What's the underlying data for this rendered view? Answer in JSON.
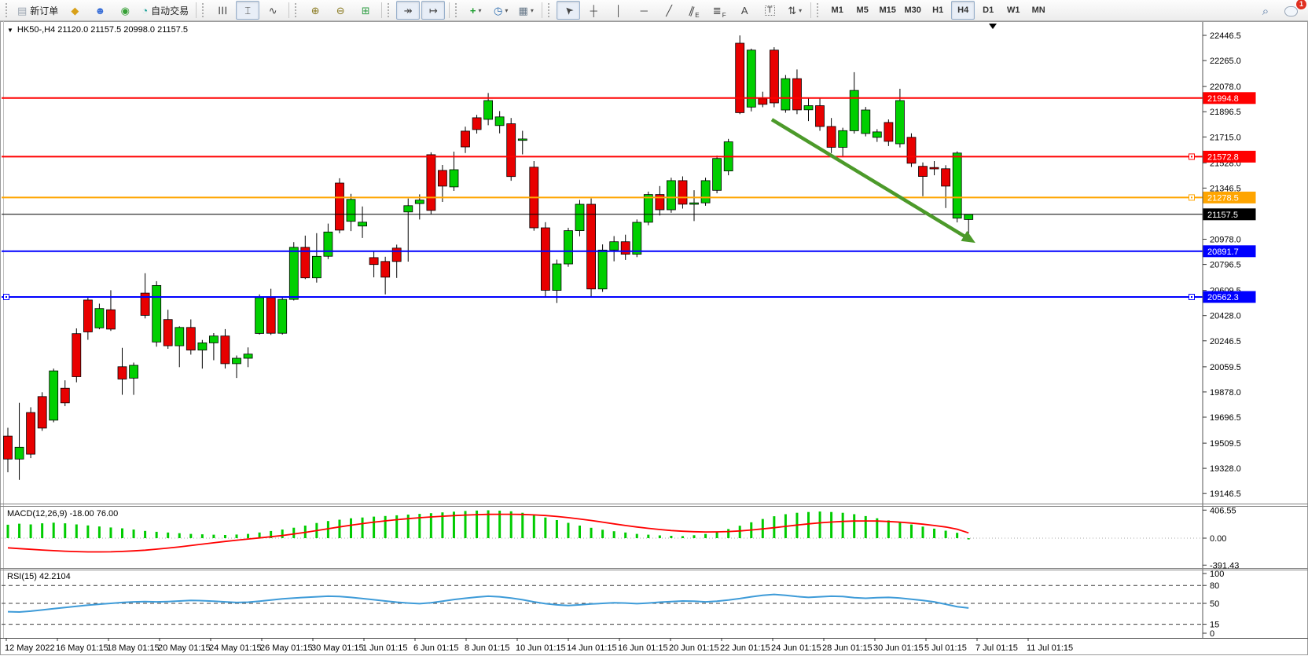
{
  "toolbar": {
    "groups": [
      [
        {
          "name": "new-order-button",
          "icon": "new-order-icon",
          "glyph": "▤",
          "color": "#9aa4b0",
          "label": "新订单"
        },
        {
          "name": "metaeditor-button",
          "icon": "metaeditor-icon",
          "glyph": "◆",
          "color": "#d8a018"
        },
        {
          "name": "community-button",
          "icon": "community-icon",
          "glyph": "☻",
          "color": "#3a6fd8"
        },
        {
          "name": "signals-button",
          "icon": "signals-icon",
          "glyph": "◉",
          "color": "#35a035"
        },
        {
          "name": "autotrading-button",
          "icon": "autotrading-icon",
          "glyph": "◔",
          "color": "#18a098",
          "label": "自动交易"
        }
      ],
      [
        {
          "name": "bar-chart-button",
          "icon": "bar-chart-icon",
          "glyph": "☰",
          "cls": "rot90"
        },
        {
          "name": "candlestick-chart-button",
          "icon": "candlestick-icon",
          "glyph": "⌶",
          "active": true
        },
        {
          "name": "line-chart-button",
          "icon": "line-chart-icon",
          "glyph": "∿"
        }
      ],
      [
        {
          "name": "zoom-in-button",
          "icon": "zoom-in-icon",
          "glyph": "⊕",
          "color": "#8a7a20"
        },
        {
          "name": "zoom-out-button",
          "icon": "zoom-out-icon",
          "glyph": "⊖",
          "color": "#8a7a20"
        },
        {
          "name": "tile-windows-button",
          "icon": "tile-windows-icon",
          "glyph": "⊞",
          "color": "#2f9e44"
        }
      ],
      [
        {
          "name": "auto-scroll-button",
          "icon": "auto-scroll-icon",
          "glyph": "↠",
          "active": true
        },
        {
          "name": "chart-shift-button",
          "icon": "chart-shift-icon",
          "glyph": "↦",
          "active": true
        }
      ],
      [
        {
          "name": "indicators-button",
          "icon": "add-indicator-icon",
          "glyph": "+",
          "color": "#1e9e30",
          "dropdown": true
        },
        {
          "name": "periods-button",
          "icon": "clock-icon",
          "glyph": "◷",
          "color": "#2b6cb0",
          "dropdown": true
        },
        {
          "name": "templates-button",
          "icon": "template-icon",
          "glyph": "▦",
          "color": "#667788",
          "dropdown": true
        }
      ],
      [
        {
          "name": "cursor-button",
          "icon": "cursor-icon",
          "glyph": "➤",
          "cls": "rotm135",
          "active": true
        },
        {
          "name": "crosshair-button",
          "icon": "crosshair-icon",
          "glyph": "┼"
        },
        {
          "name": "vertical-line-button",
          "icon": "vertical-line-icon",
          "glyph": "│"
        },
        {
          "name": "horizontal-line-button",
          "icon": "horizontal-line-icon",
          "glyph": "─"
        },
        {
          "name": "trendline-button",
          "icon": "trendline-icon",
          "glyph": "╱"
        },
        {
          "name": "channel-button",
          "icon": "channel-icon",
          "glyph": "∥",
          "cls": "rot25",
          "sub": "E"
        },
        {
          "name": "fibonacci-button",
          "icon": "fibonacci-icon",
          "glyph": "≣",
          "sub": "F"
        },
        {
          "name": "text-button",
          "icon": "text-icon",
          "glyph": "A"
        },
        {
          "name": "text-label-button",
          "icon": "text-label-icon",
          "glyph": "T",
          "cls": "boxed"
        },
        {
          "name": "arrows-button",
          "icon": "arrows-icon",
          "glyph": "⇅",
          "dropdown": true
        }
      ]
    ],
    "timeframes": {
      "items": [
        "M1",
        "M5",
        "M15",
        "M30",
        "H1",
        "H4",
        "D1",
        "W1",
        "MN"
      ],
      "active": "H4"
    },
    "right": {
      "search_glyph": "⌕",
      "notification_count": "1"
    }
  },
  "chart_data": {
    "type": "candlestick",
    "symbol": "HK50-",
    "period": "H4",
    "title_text": "HK50-,H4   21120.0 21157.5 20998.0 21157.5",
    "current_bar": {
      "open": 21120.0,
      "high": 21157.5,
      "low": 20998.0,
      "close": 21157.5
    },
    "price_axis_ticks": [
      "22446.5",
      "22265.0",
      "22078.0",
      "21896.5",
      "21715.0",
      "21528.0",
      "21346.5",
      "20978.0",
      "20796.5",
      "20609.5",
      "20428.0",
      "20246.5",
      "20059.5",
      "19878.0",
      "19696.5",
      "19509.5",
      "19328.0",
      "19146.5"
    ],
    "levels": [
      {
        "text": "21994.8",
        "price": 21994.8,
        "color": "#ff0000",
        "width": 2,
        "handles": []
      },
      {
        "text": "21572.8",
        "price": 21572.8,
        "color": "#ff0000",
        "width": 2,
        "handles": [
          "right"
        ]
      },
      {
        "text": "21278.5",
        "price": 21278.5,
        "color": "#ffa500",
        "width": 2,
        "handles": [
          "right"
        ]
      },
      {
        "text": "21157.5",
        "price": 21157.5,
        "color": "#000000",
        "width": 1,
        "handles": [],
        "is_price_line": true
      },
      {
        "text": "20891.7",
        "price": 20891.7,
        "color": "#0000ff",
        "width": 2,
        "handles": []
      },
      {
        "text": "20562.3",
        "price": 20562.3,
        "color": "#0000ff",
        "width": 2,
        "handles": [
          "left",
          "right"
        ]
      }
    ],
    "arrow": {
      "from_bar": 66.8,
      "from_price": 21840,
      "to_bar": 84.6,
      "to_price": 20952,
      "color": "#4c9a2a"
    },
    "colors": {
      "bull": "#00cf00",
      "bear": "#e80000",
      "wick": "#000000",
      "macd_hist": "#00cc00",
      "macd_signal": "#ff0000",
      "rsi_line": "#3e9bd8"
    },
    "candles": [
      [
        19560,
        19620,
        19300,
        19395
      ],
      [
        19395,
        19800,
        19245,
        19480
      ],
      [
        19730,
        19768,
        19402,
        19430
      ],
      [
        19845,
        19876,
        19598,
        19618
      ],
      [
        19675,
        20046,
        19660,
        20030
      ],
      [
        19905,
        19962,
        19776,
        19800
      ],
      [
        20298,
        20336,
        19948,
        19988
      ],
      [
        20540,
        20566,
        20254,
        20310
      ],
      [
        20340,
        20514,
        20330,
        20479
      ],
      [
        20470,
        20611,
        20318,
        20331
      ],
      [
        20060,
        20196,
        19858,
        19971
      ],
      [
        19978,
        20090,
        19857,
        20070
      ],
      [
        20590,
        20733,
        20408,
        20430
      ],
      [
        20238,
        20676,
        20204,
        20645
      ],
      [
        20400,
        20470,
        20189,
        20211
      ],
      [
        20211,
        20351,
        20057,
        20343
      ],
      [
        20343,
        20401,
        20147,
        20180
      ],
      [
        20180,
        20253,
        20046,
        20232
      ],
      [
        20232,
        20302,
        20107,
        20281
      ],
      [
        20281,
        20331,
        20047,
        20082
      ],
      [
        20082,
        20141,
        19979,
        20121
      ],
      [
        20121,
        20199,
        20057,
        20151
      ],
      [
        20300,
        20581,
        20291,
        20558
      ],
      [
        20558,
        20621,
        20289,
        20301
      ],
      [
        20301,
        20561,
        20291,
        20545
      ],
      [
        20545,
        20957,
        20537,
        20920
      ],
      [
        20920,
        21004,
        20691,
        20700
      ],
      [
        20700,
        21022,
        20666,
        20855
      ],
      [
        20855,
        21091,
        20835,
        21030
      ],
      [
        21383,
        21417,
        21021,
        21044
      ],
      [
        21107,
        21305,
        21037,
        21265
      ],
      [
        21073,
        21214,
        20987,
        21101
      ],
      [
        20846,
        20893,
        20704,
        20796
      ],
      [
        20818,
        20852,
        20581,
        20705
      ],
      [
        20914,
        20939,
        20699,
        20818
      ],
      [
        21175,
        21271,
        20817,
        21220
      ],
      [
        21235,
        21301,
        21120,
        21260
      ],
      [
        21587,
        21604,
        21158,
        21186
      ],
      [
        21474,
        21513,
        21247,
        21361
      ],
      [
        21355,
        21609,
        21326,
        21479
      ],
      [
        21757,
        21789,
        21599,
        21643
      ],
      [
        21853,
        21874,
        21739,
        21768
      ],
      [
        21842,
        22031,
        21799,
        21977
      ],
      [
        21797,
        21901,
        21741,
        21859
      ],
      [
        21810,
        21851,
        21399,
        21430
      ],
      [
        21690,
        21759,
        21589,
        21700
      ],
      [
        21497,
        21541,
        21039,
        21060
      ],
      [
        21060,
        21101,
        20558,
        20610
      ],
      [
        20610,
        20831,
        20519,
        20800
      ],
      [
        20800,
        21061,
        20779,
        21040
      ],
      [
        21040,
        21261,
        20999,
        21230
      ],
      [
        21230,
        21272,
        20559,
        20620
      ],
      [
        20620,
        20941,
        20599,
        20900
      ],
      [
        20900,
        21001,
        20819,
        20960
      ],
      [
        20960,
        21011,
        20829,
        20870
      ],
      [
        20870,
        21121,
        20849,
        21100
      ],
      [
        21100,
        21321,
        21079,
        21300
      ],
      [
        21300,
        21361,
        21149,
        21190
      ],
      [
        21190,
        21421,
        21169,
        21400
      ],
      [
        21400,
        21431,
        21199,
        21230
      ],
      [
        21230,
        21331,
        21109,
        21240
      ],
      [
        21240,
        21421,
        21219,
        21400
      ],
      [
        21330,
        21581,
        21309,
        21560
      ],
      [
        21470,
        21701,
        21439,
        21680
      ],
      [
        22390,
        22446,
        21879,
        21890
      ],
      [
        21930,
        22351,
        21899,
        22340
      ],
      [
        21990,
        22041,
        21929,
        21950
      ],
      [
        22340,
        22361,
        21929,
        21960
      ],
      [
        21909,
        22161,
        21889,
        22135
      ],
      [
        22135,
        22201,
        21879,
        21910
      ],
      [
        21910,
        21991,
        21829,
        21940
      ],
      [
        21940,
        21991,
        21759,
        21790
      ],
      [
        21790,
        21851,
        21599,
        21640
      ],
      [
        21640,
        21781,
        21569,
        21760
      ],
      [
        21760,
        22181,
        21739,
        22050
      ],
      [
        21740,
        21931,
        21719,
        21909
      ],
      [
        21712,
        21771,
        21679,
        21751
      ],
      [
        21819,
        21841,
        21649,
        21683
      ],
      [
        21666,
        22062,
        21639,
        21977
      ],
      [
        21712,
        21741,
        21499,
        21525
      ],
      [
        21503,
        21531,
        21288,
        21430
      ],
      [
        21495,
        21541,
        21439,
        21485
      ],
      [
        21486,
        21511,
        21203,
        21361
      ],
      [
        21130,
        21611,
        21099,
        21599
      ],
      [
        21120,
        21157.5,
        20998,
        21157.5
      ]
    ],
    "macd": {
      "label": "MACD(12,26,9) -18.00 76.00",
      "axis": [
        "406.55",
        "0.00",
        "-391.43"
      ],
      "hist": [
        195,
        210,
        200,
        215,
        225,
        215,
        200,
        185,
        170,
        155,
        142,
        125,
        105,
        92,
        82,
        72,
        62,
        56,
        50,
        46,
        52,
        62,
        82,
        104,
        125,
        152,
        182,
        220,
        248,
        268,
        288,
        300,
        312,
        322,
        332,
        342,
        352,
        362,
        374,
        384,
        394,
        400,
        405,
        399,
        390,
        368,
        338,
        300,
        262,
        222,
        182,
        150,
        122,
        100,
        82,
        62,
        50,
        40,
        34,
        30,
        42,
        62,
        92,
        132,
        180,
        230,
        278,
        318,
        348,
        368,
        380,
        386,
        380,
        368,
        348,
        320,
        288,
        258,
        228,
        198,
        168,
        138,
        108,
        78,
        -18
      ],
      "signal": [
        -140,
        -152,
        -162,
        -172,
        -181,
        -189,
        -195,
        -199,
        -200,
        -198,
        -193,
        -185,
        -174,
        -160,
        -144,
        -126,
        -107,
        -87,
        -67,
        -48,
        -30,
        -13,
        3,
        20,
        39,
        60,
        84,
        110,
        137,
        163,
        188,
        211,
        232,
        251,
        268,
        283,
        296,
        308,
        318,
        327,
        335,
        341,
        345,
        347,
        347,
        344,
        338,
        328,
        315,
        298,
        278,
        256,
        232,
        208,
        184,
        162,
        142,
        125,
        111,
        100,
        93,
        90,
        91,
        96,
        105,
        118,
        134,
        152,
        171,
        190,
        207,
        222,
        234,
        243,
        248,
        250,
        248,
        242,
        232,
        219,
        203,
        184,
        162,
        130,
        76
      ]
    },
    "rsi": {
      "label": "RSI(15) 42.2104",
      "axis": [
        "100",
        "80",
        "50",
        "15",
        "0"
      ],
      "dashed_levels": [
        80,
        50,
        15
      ],
      "series": [
        36,
        35.5,
        37,
        39,
        41,
        43,
        45,
        47,
        48.5,
        50,
        51.5,
        52.5,
        53,
        52.5,
        53,
        54,
        55,
        54.5,
        53.5,
        52.5,
        51.5,
        52,
        53.5,
        55.5,
        57.5,
        59,
        60,
        61,
        62,
        61.5,
        60,
        58,
        56,
        54,
        52,
        50.5,
        49.5,
        51,
        53.5,
        56.5,
        58.5,
        60.5,
        62,
        61,
        59,
        56,
        52.5,
        49.5,
        47.5,
        46.5,
        47.5,
        49,
        50,
        51,
        50.5,
        49.5,
        50.5,
        52,
        53,
        54,
        53.5,
        52.5,
        53.5,
        55.5,
        58,
        61,
        63.5,
        65,
        63.5,
        61.5,
        60,
        61,
        62,
        61.5,
        59.5,
        58.5,
        59.5,
        60,
        59,
        57,
        55,
        52.5,
        48.5,
        44.5,
        42.2
      ]
    },
    "time_axis": [
      "12 May 2022",
      "16 May 01:15",
      "18 May 01:15",
      "20 May 01:15",
      "24 May 01:15",
      "26 May 01:15",
      "30 May 01:15",
      "1 Jun 01:15",
      "6 Jun 01:15",
      "8 Jun 01:15",
      "10 Jun 01:15",
      "14 Jun 01:15",
      "16 Jun 01:15",
      "20 Jun 01:15",
      "22 Jun 01:15",
      "24 Jun 01:15",
      "28 Jun 01:15",
      "30 Jun 01:15",
      "5 Jul 01:15",
      "7 Jul 01:15",
      "11 Jul 01:15"
    ]
  }
}
